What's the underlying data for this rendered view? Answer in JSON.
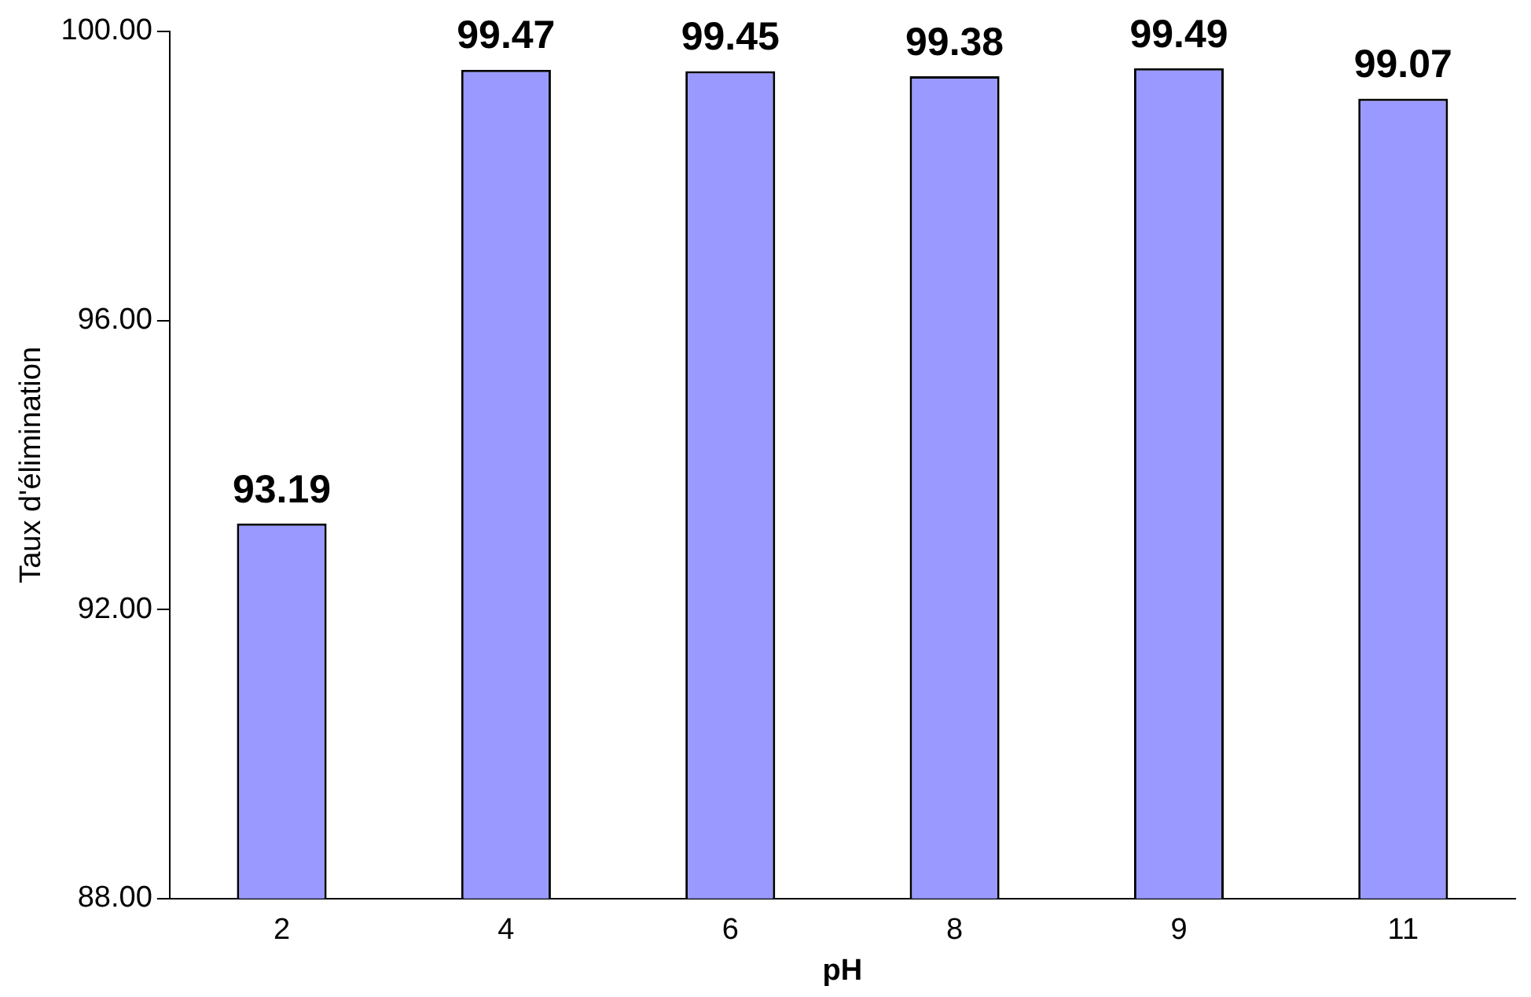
{
  "chart_data": {
    "type": "bar",
    "xlabel": "pH",
    "ylabel": "Taux d'élimination",
    "categories": [
      "2",
      "4",
      "6",
      "8",
      "9",
      "11"
    ],
    "values": [
      93.19,
      99.47,
      99.45,
      99.38,
      99.49,
      99.07
    ],
    "color": "#9999ff",
    "ylim": [
      88,
      100
    ],
    "yticks": [
      {
        "value": 88,
        "label": "88.00"
      },
      {
        "value": 92,
        "label": "92.00"
      },
      {
        "value": 96,
        "label": "96.00"
      },
      {
        "value": 100,
        "label": "100.00"
      }
    ],
    "grid": false,
    "legend": false,
    "data_labels": true
  }
}
